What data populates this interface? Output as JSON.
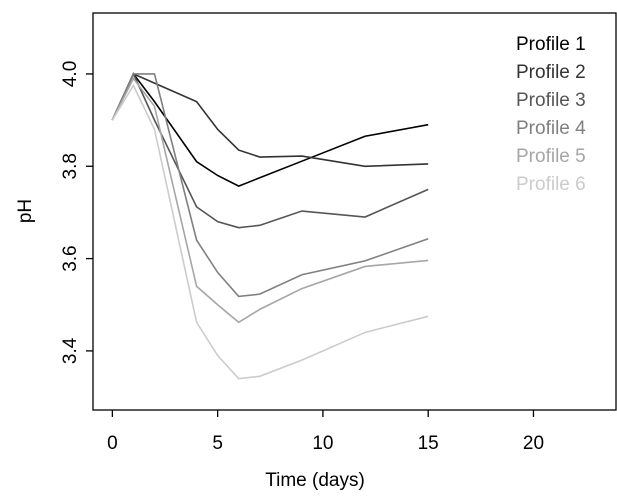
{
  "chart_data": {
    "type": "line",
    "x_label": "Time (days)",
    "y_label": "pH",
    "x": [
      0,
      1,
      2,
      4,
      5,
      6,
      7,
      9,
      12,
      15
    ],
    "series": [
      {
        "name": "Profile 1",
        "color": "#000000",
        "values": [
          3.9,
          4.0,
          3.94,
          3.81,
          3.78,
          3.757,
          3.775,
          3.811,
          3.865,
          3.89
        ]
      },
      {
        "name": "Profile 2",
        "color": "#333333",
        "values": [
          3.9,
          4.0,
          3.98,
          3.94,
          3.88,
          3.835,
          3.82,
          3.822,
          3.8,
          3.805
        ]
      },
      {
        "name": "Profile 3",
        "color": "#555555",
        "values": [
          3.9,
          4.0,
          3.9,
          3.712,
          3.68,
          3.667,
          3.672,
          3.703,
          3.69,
          3.75
        ]
      },
      {
        "name": "Profile 4",
        "color": "#808080",
        "values": [
          3.9,
          4.0,
          4.0,
          3.64,
          3.57,
          3.518,
          3.523,
          3.565,
          3.595,
          3.643
        ]
      },
      {
        "name": "Profile 5",
        "color": "#a6a6a6",
        "values": [
          3.9,
          3.99,
          3.93,
          3.54,
          3.5,
          3.462,
          3.49,
          3.535,
          3.583,
          3.596
        ]
      },
      {
        "name": "Profile 6",
        "color": "#cccccc",
        "values": [
          3.9,
          3.975,
          3.88,
          3.462,
          3.39,
          3.34,
          3.345,
          3.38,
          3.44,
          3.475
        ]
      }
    ],
    "xlim": [
      -0.92,
      23.92
    ],
    "xticks": [
      0,
      5,
      10,
      15,
      20
    ],
    "ylim": [
      3.272,
      4.132
    ],
    "yticks": [
      3.4,
      3.6,
      3.8,
      {
        "value": 4.0,
        "label": "4.0"
      }
    ],
    "legend": "topright",
    "grid": false
  }
}
